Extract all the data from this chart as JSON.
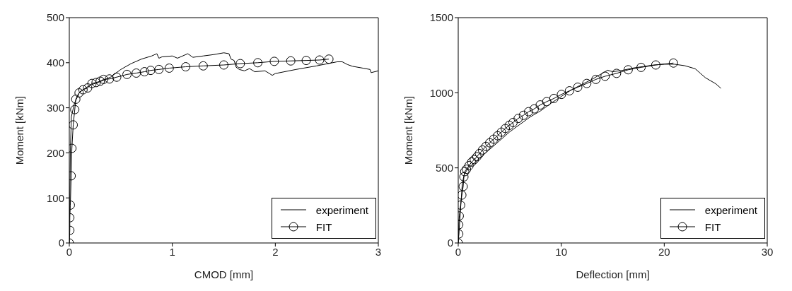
{
  "chart_data": [
    {
      "type": "line",
      "xlabel": "CMOD [mm]",
      "ylabel": "Moment [kNm]",
      "xlim": [
        0,
        3
      ],
      "ylim": [
        0,
        500
      ],
      "xticks": [
        0,
        1,
        2,
        3
      ],
      "yticks": [
        0,
        100,
        200,
        300,
        400,
        500
      ],
      "grid": false,
      "legend": "bottom right",
      "series": [
        {
          "name": "experiment",
          "color": "#000000",
          "marker": "none",
          "x": [
            0,
            0.005,
            0.01,
            0.02,
            0.05,
            0.1,
            0.2,
            0.3,
            0.4,
            0.5,
            0.6,
            0.7,
            0.8,
            0.85,
            0.87,
            0.9,
            1.0,
            1.05,
            1.15,
            1.2,
            1.3,
            1.4,
            1.5,
            1.55,
            1.57,
            1.6,
            1.62,
            1.65,
            1.7,
            1.75,
            1.8,
            1.9,
            1.95,
            1.97,
            2.0,
            2.2,
            2.4,
            2.6,
            2.65,
            2.7,
            2.75,
            2.85,
            2.92,
            2.93,
            3.0
          ],
          "values": [
            0,
            100,
            200,
            280,
            310,
            335,
            350,
            358,
            368,
            385,
            398,
            408,
            415,
            420,
            410,
            413,
            415,
            410,
            420,
            412,
            415,
            418,
            422,
            420,
            408,
            405,
            390,
            385,
            382,
            387,
            380,
            382,
            375,
            372,
            376,
            385,
            393,
            402,
            402,
            396,
            392,
            388,
            385,
            378,
            382
          ]
        },
        {
          "name": "FIT",
          "color": "#000000",
          "marker": "circle",
          "x": [
            0,
            0.005,
            0.005,
            0.01,
            0.018,
            0.025,
            0.038,
            0.053,
            0.063,
            0.095,
            0.133,
            0.178,
            0.22,
            0.26,
            0.3,
            0.333,
            0.39,
            0.46,
            0.56,
            0.65,
            0.73,
            0.79,
            0.87,
            0.97,
            1.13,
            1.3,
            1.5,
            1.66,
            1.83,
            1.99,
            2.15,
            2.3,
            2.43,
            2.52
          ],
          "values": [
            0,
            28,
            56,
            84,
            149,
            210,
            262,
            296,
            319,
            333,
            340,
            344,
            354,
            356,
            359,
            363,
            364,
            368,
            374,
            377,
            380,
            383,
            385,
            388,
            391,
            393,
            395,
            398,
            400,
            403,
            404,
            405,
            406,
            408
          ]
        }
      ]
    },
    {
      "type": "line",
      "xlabel": "Deflection [mm]",
      "ylabel": "Moment [kNm]",
      "xlim": [
        0,
        30
      ],
      "ylim": [
        0,
        1500
      ],
      "xticks": [
        0,
        10,
        20,
        30
      ],
      "yticks": [
        0,
        500,
        1000,
        1500
      ],
      "grid": false,
      "legend": "bottom right",
      "series": [
        {
          "name": "experiment",
          "color": "#000000",
          "marker": "none",
          "x": [
            0,
            0.2,
            0.4,
            0.6,
            1,
            2,
            3,
            4,
            5,
            6,
            7,
            8,
            9,
            10,
            11,
            12,
            13,
            14,
            14.5,
            15,
            16,
            17,
            18,
            19,
            20,
            21,
            22,
            23,
            23.5,
            24,
            24.5,
            25,
            25.5
          ],
          "values": [
            0,
            200,
            400,
            460,
            500,
            560,
            620,
            680,
            740,
            790,
            840,
            880,
            930,
            975,
            1020,
            1055,
            1090,
            1130,
            1150,
            1140,
            1150,
            1165,
            1175,
            1185,
            1190,
            1190,
            1180,
            1160,
            1130,
            1100,
            1080,
            1060,
            1030
          ]
        },
        {
          "name": "FIT",
          "color": "#000000",
          "marker": "circle",
          "x": [
            0,
            0.05,
            0.05,
            0.1,
            0.23,
            0.35,
            0.48,
            0.55,
            0.63,
            0.8,
            1.05,
            1.31,
            1.56,
            1.81,
            2.06,
            2.36,
            2.69,
            3.06,
            3.44,
            3.82,
            4.19,
            4.57,
            4.95,
            5.32,
            5.82,
            6.33,
            6.83,
            7.38,
            7.96,
            8.59,
            9.29,
            10.02,
            10.8,
            11.6,
            12.48,
            13.36,
            14.26,
            15.37,
            16.5,
            17.75,
            19.18,
            20.89
          ],
          "values": [
            0,
            60,
            121,
            180,
            252,
            319,
            376,
            440,
            475,
            491,
            515,
            539,
            555,
            574,
            595,
            619,
            643,
            667,
            691,
            714,
            738,
            762,
            783,
            802,
            829,
            850,
            874,
            893,
            919,
            941,
            962,
            989,
            1013,
            1037,
            1062,
            1089,
            1110,
            1129,
            1153,
            1169,
            1185,
            1198
          ]
        }
      ]
    }
  ]
}
